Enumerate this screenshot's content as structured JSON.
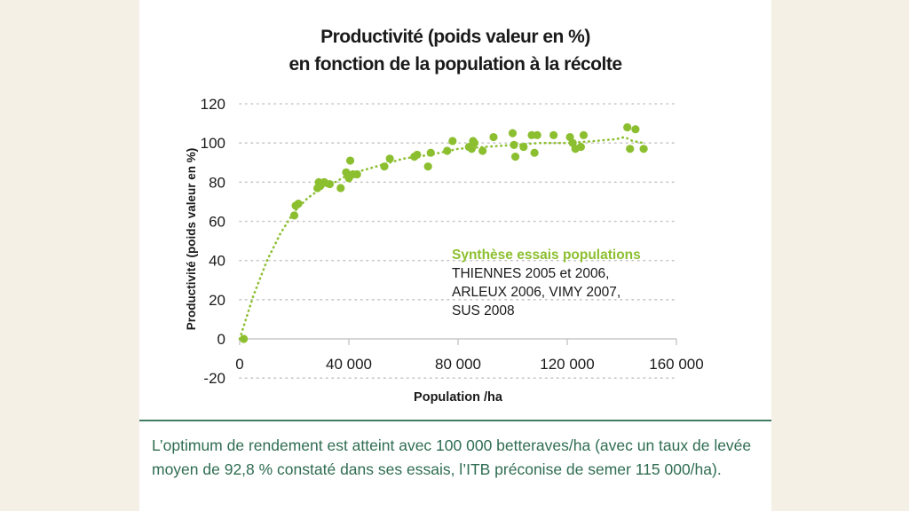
{
  "caption": "L’optimum de rendement est atteint avec 100 000 betteraves/ha (avec un taux de levée moyen de 92,8 % constaté dans ses essais, l’ITB préconise de semer 115 000/ha).",
  "legend": {
    "title": "Synthèse essais populations",
    "lines": [
      "THIENNES 2005 et 2006,",
      "ARLEUX 2006, VIMY 2007,",
      "SUS 2008"
    ]
  },
  "colors": {
    "point": "#8cbf30",
    "grid": "#c8c8c8",
    "caption": "#2f6d52",
    "rule": "#3f7d62"
  },
  "chart_data": {
    "type": "scatter",
    "title": "Productivité (poids valeur en %) en fonction de la population à la récolte",
    "title_lines": [
      "Productivité (poids valeur en %)",
      "en fonction de la population à la récolte"
    ],
    "xlabel": "Population /ha",
    "ylabel": "Productivité (poids valeur en %)",
    "xlim": [
      0,
      160000
    ],
    "ylim": [
      -20,
      120
    ],
    "xticks": [
      0,
      40000,
      80000,
      120000,
      160000
    ],
    "xtick_labels": [
      "0",
      "40 000",
      "80 000",
      "120 000",
      "160 000"
    ],
    "yticks": [
      -20,
      0,
      20,
      40,
      60,
      80,
      100,
      120
    ],
    "ytick_labels": [
      "-20",
      "0",
      "20",
      "40",
      "60",
      "80",
      "100",
      "120"
    ],
    "grid": true,
    "points": [
      [
        1500,
        0
      ],
      [
        20000,
        63
      ],
      [
        20500,
        68
      ],
      [
        21500,
        69
      ],
      [
        29000,
        80
      ],
      [
        29500,
        78
      ],
      [
        30000,
        79
      ],
      [
        28500,
        77
      ],
      [
        31000,
        80
      ],
      [
        33000,
        79
      ],
      [
        37000,
        77
      ],
      [
        39000,
        85
      ],
      [
        40000,
        82
      ],
      [
        40500,
        91
      ],
      [
        41500,
        84
      ],
      [
        43000,
        84
      ],
      [
        53000,
        88
      ],
      [
        55000,
        92
      ],
      [
        64000,
        93
      ],
      [
        65000,
        94
      ],
      [
        69000,
        88
      ],
      [
        70000,
        95
      ],
      [
        76000,
        96
      ],
      [
        78000,
        101
      ],
      [
        84000,
        98
      ],
      [
        85000,
        97
      ],
      [
        85500,
        101
      ],
      [
        86000,
        100
      ],
      [
        89000,
        96
      ],
      [
        93000,
        103
      ],
      [
        100000,
        105
      ],
      [
        100500,
        99
      ],
      [
        101000,
        93
      ],
      [
        104000,
        98
      ],
      [
        107000,
        104
      ],
      [
        108000,
        95
      ],
      [
        109000,
        104
      ],
      [
        115000,
        104
      ],
      [
        121000,
        103
      ],
      [
        122000,
        100
      ],
      [
        123000,
        97
      ],
      [
        125000,
        98
      ],
      [
        126000,
        104
      ],
      [
        142000,
        108
      ],
      [
        143000,
        97
      ],
      [
        145000,
        107
      ],
      [
        148000,
        97
      ]
    ],
    "trend": [
      [
        0,
        0
      ],
      [
        5000,
        22
      ],
      [
        10000,
        40
      ],
      [
        15000,
        54
      ],
      [
        20000,
        65
      ],
      [
        25000,
        72
      ],
      [
        30000,
        77
      ],
      [
        35000,
        80
      ],
      [
        40000,
        84
      ],
      [
        50000,
        88
      ],
      [
        60000,
        92
      ],
      [
        70000,
        94
      ],
      [
        80000,
        97
      ],
      [
        90000,
        98
      ],
      [
        100000,
        99
      ],
      [
        110000,
        100
      ],
      [
        120000,
        100
      ],
      [
        130000,
        101
      ],
      [
        138000,
        102
      ],
      [
        141000,
        103
      ],
      [
        144000,
        101
      ],
      [
        148000,
        100
      ]
    ]
  }
}
